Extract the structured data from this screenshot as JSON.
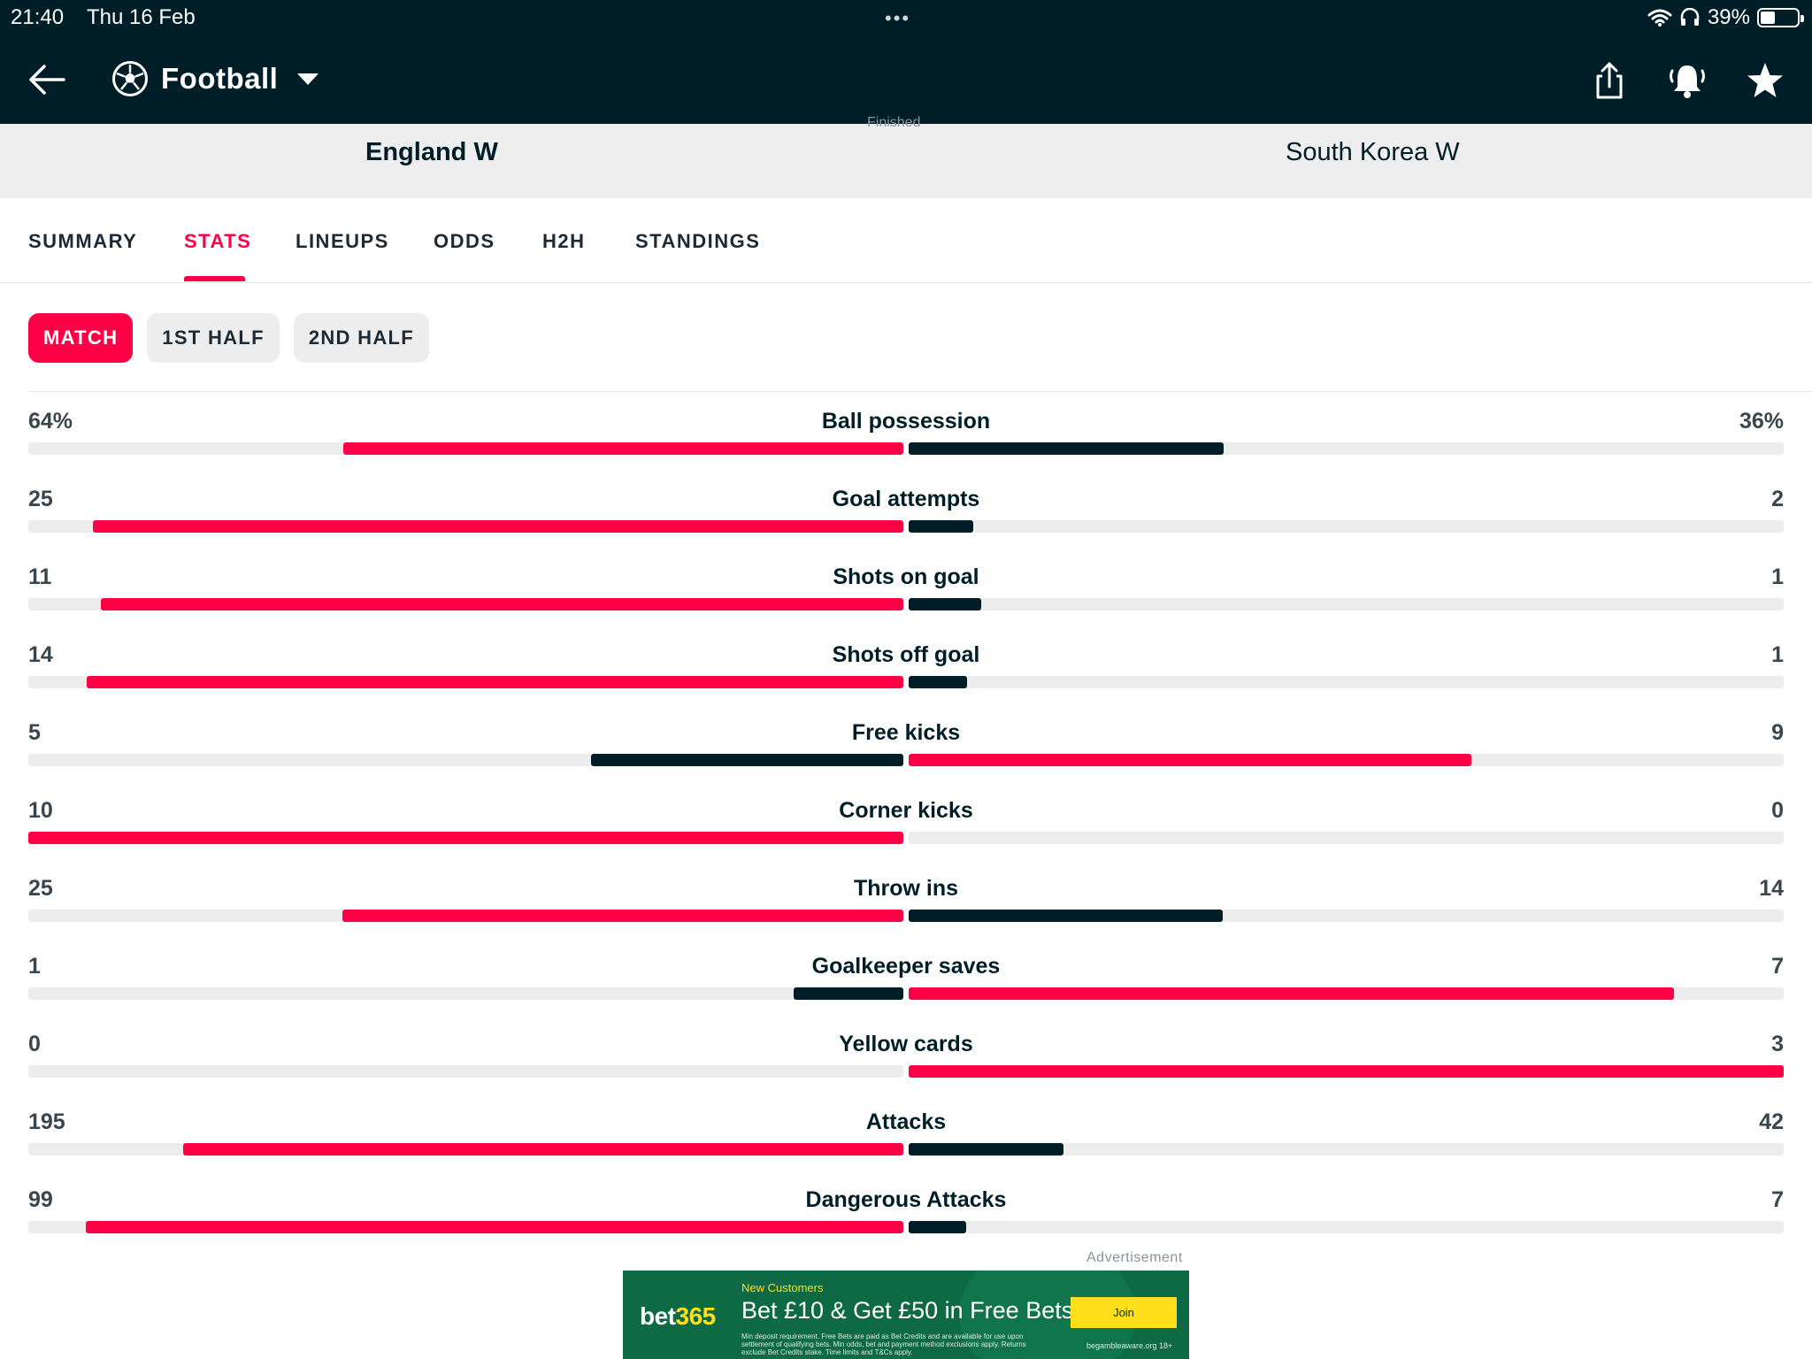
{
  "status_bar": {
    "time": "21:40",
    "date": "Thu 16 Feb",
    "dots": "•••",
    "battery_pct": "39%",
    "battery_level": 0.39
  },
  "nav": {
    "sport": "Football",
    "icons": [
      "back-arrow-icon",
      "football-icon",
      "share-icon",
      "alarm-bell-icon",
      "star-icon"
    ]
  },
  "match": {
    "status": "Finished",
    "home_team": "England W",
    "away_team": "South Korea W"
  },
  "tabs": [
    {
      "label": "SUMMARY",
      "active": false
    },
    {
      "label": "STATS",
      "active": true
    },
    {
      "label": "LINEUPS",
      "active": false
    },
    {
      "label": "ODDS",
      "active": false
    },
    {
      "label": "H2H",
      "active": false
    },
    {
      "label": "STANDINGS",
      "active": false
    }
  ],
  "periods": [
    {
      "label": "MATCH",
      "active": true
    },
    {
      "label": "1ST HALF",
      "active": false
    },
    {
      "label": "2ND HALF",
      "active": false
    }
  ],
  "colors": {
    "accent": "#ff0046",
    "dark": "#001e28",
    "track": "#ececec"
  },
  "stats": [
    {
      "label": "Ball possession",
      "home": "64%",
      "away": "36%",
      "home_value": 64,
      "away_value": 36
    },
    {
      "label": "Goal attempts",
      "home": "25",
      "away": "2",
      "home_value": 25,
      "away_value": 2
    },
    {
      "label": "Shots on goal",
      "home": "11",
      "away": "1",
      "home_value": 11,
      "away_value": 1
    },
    {
      "label": "Shots off goal",
      "home": "14",
      "away": "1",
      "home_value": 14,
      "away_value": 1
    },
    {
      "label": "Free kicks",
      "home": "5",
      "away": "9",
      "home_value": 5,
      "away_value": 9
    },
    {
      "label": "Corner kicks",
      "home": "10",
      "away": "0",
      "home_value": 10,
      "away_value": 0
    },
    {
      "label": "Throw ins",
      "home": "25",
      "away": "14",
      "home_value": 25,
      "away_value": 14
    },
    {
      "label": "Goalkeeper saves",
      "home": "1",
      "away": "7",
      "home_value": 1,
      "away_value": 7
    },
    {
      "label": "Yellow cards",
      "home": "0",
      "away": "3",
      "home_value": 0,
      "away_value": 3
    },
    {
      "label": "Attacks",
      "home": "195",
      "away": "42",
      "home_value": 195,
      "away_value": 42
    },
    {
      "label": "Dangerous Attacks",
      "home": "99",
      "away": "7",
      "home_value": 99,
      "away_value": 7
    }
  ],
  "ad": {
    "label": "Advertisement",
    "brand_main": "bet",
    "brand_num": "365",
    "new_customers": "New Customers",
    "headline": "Bet £10 & Get £50 in Free Bets",
    "small_print": "Min deposit requirement. Free Bets are paid as Bet Credits and are available for use upon settlement of qualifying bets. Min odds, bet and payment method exclusions apply. Returns exclude Bet Credits stake. Time limits and T&Cs apply.",
    "cta": "Join",
    "footer": "begambleaware.org 18+"
  }
}
